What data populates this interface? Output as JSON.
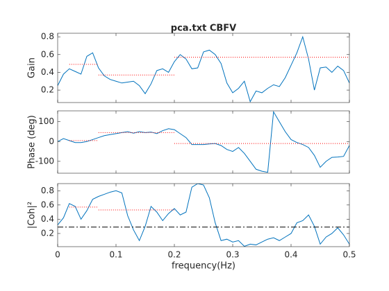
{
  "chart_data": [
    {
      "type": "line",
      "title": "pca.txt CBFV",
      "ylabel": "Gain",
      "color": "#0072bd",
      "x": [
        0,
        0.01,
        0.02,
        0.03,
        0.04,
        0.05,
        0.06,
        0.07,
        0.08,
        0.09,
        0.1,
        0.11,
        0.12,
        0.13,
        0.14,
        0.15,
        0.16,
        0.17,
        0.18,
        0.19,
        0.2,
        0.21,
        0.22,
        0.23,
        0.24,
        0.25,
        0.26,
        0.27,
        0.28,
        0.29,
        0.3,
        0.31,
        0.32,
        0.33,
        0.34,
        0.35,
        0.36,
        0.37,
        0.38,
        0.39,
        0.4,
        0.41,
        0.42,
        0.43,
        0.44,
        0.45,
        0.46,
        0.47,
        0.48,
        0.49,
        0.5
      ],
      "values": [
        0.25,
        0.38,
        0.44,
        0.41,
        0.38,
        0.58,
        0.62,
        0.45,
        0.36,
        0.32,
        0.3,
        0.28,
        0.29,
        0.3,
        0.25,
        0.16,
        0.27,
        0.42,
        0.44,
        0.4,
        0.52,
        0.6,
        0.55,
        0.44,
        0.45,
        0.63,
        0.65,
        0.6,
        0.5,
        0.28,
        0.17,
        0.22,
        0.3,
        0.07,
        0.19,
        0.17,
        0.22,
        0.26,
        0.24,
        0.34,
        0.48,
        0.62,
        0.8,
        0.55,
        0.2,
        0.45,
        0.46,
        0.4,
        0.47,
        0.42,
        0.28
      ],
      "segments": [
        {
          "x0": 0.02,
          "x1": 0.07,
          "value": 0.49
        },
        {
          "x0": 0.07,
          "x1": 0.2,
          "value": 0.37
        },
        {
          "x0": 0.2,
          "x1": 0.5,
          "value": 0.57
        }
      ],
      "segment_color": "#ff0000",
      "xlim": [
        0,
        0.5
      ],
      "xticks": [
        0,
        0.1,
        0.2,
        0.3,
        0.4,
        0.5
      ],
      "ylim": [
        0.06,
        0.84
      ],
      "yticks": [
        0.2,
        0.4,
        0.6,
        0.8
      ]
    },
    {
      "type": "line",
      "ylabel": "Phase (deg)",
      "color": "#0072bd",
      "x": [
        0,
        0.01,
        0.02,
        0.03,
        0.04,
        0.05,
        0.06,
        0.07,
        0.08,
        0.09,
        0.1,
        0.11,
        0.12,
        0.13,
        0.14,
        0.15,
        0.16,
        0.17,
        0.18,
        0.19,
        0.2,
        0.21,
        0.22,
        0.23,
        0.24,
        0.25,
        0.26,
        0.27,
        0.28,
        0.29,
        0.3,
        0.31,
        0.32,
        0.33,
        0.34,
        0.35,
        0.36,
        0.37,
        0.38,
        0.39,
        0.4,
        0.41,
        0.42,
        0.43,
        0.44,
        0.45,
        0.46,
        0.47,
        0.48,
        0.49,
        0.5
      ],
      "values": [
        0,
        15,
        5,
        -5,
        -5,
        0,
        10,
        20,
        30,
        35,
        40,
        45,
        50,
        42,
        50,
        45,
        48,
        40,
        55,
        65,
        60,
        40,
        20,
        -15,
        -15,
        -15,
        -12,
        -10,
        -20,
        -40,
        -50,
        -30,
        -60,
        -100,
        -140,
        -150,
        -155,
        150,
        100,
        50,
        10,
        -5,
        -15,
        -30,
        -70,
        -130,
        -100,
        -80,
        -78,
        -75,
        -20
      ],
      "segments": [
        {
          "x0": 0.02,
          "x1": 0.07,
          "value": 5
        },
        {
          "x0": 0.07,
          "x1": 0.2,
          "value": 45
        },
        {
          "x0": 0.2,
          "x1": 0.5,
          "value": -10
        }
      ],
      "segment_color": "#ff0000",
      "xlim": [
        0,
        0.5
      ],
      "xticks": [
        0,
        0.1,
        0.2,
        0.3,
        0.4,
        0.5
      ],
      "ylim": [
        -160,
        155
      ],
      "yticks": [
        -100,
        0,
        100
      ]
    },
    {
      "type": "line",
      "ylabel": "|Coh|²",
      "xlabel": "frequency(Hz)",
      "color": "#0072bd",
      "x": [
        0,
        0.01,
        0.02,
        0.03,
        0.04,
        0.05,
        0.06,
        0.07,
        0.08,
        0.09,
        0.1,
        0.11,
        0.12,
        0.13,
        0.14,
        0.15,
        0.16,
        0.17,
        0.18,
        0.19,
        0.2,
        0.21,
        0.22,
        0.23,
        0.24,
        0.25,
        0.26,
        0.27,
        0.28,
        0.29,
        0.3,
        0.31,
        0.32,
        0.33,
        0.34,
        0.35,
        0.36,
        0.37,
        0.38,
        0.39,
        0.4,
        0.41,
        0.42,
        0.43,
        0.44,
        0.45,
        0.46,
        0.47,
        0.48,
        0.49,
        0.5
      ],
      "values": [
        0.32,
        0.42,
        0.62,
        0.58,
        0.4,
        0.52,
        0.68,
        0.72,
        0.75,
        0.78,
        0.8,
        0.77,
        0.45,
        0.25,
        0.1,
        0.3,
        0.58,
        0.5,
        0.38,
        0.48,
        0.55,
        0.46,
        0.5,
        0.85,
        0.9,
        0.88,
        0.7,
        0.35,
        0.1,
        0.12,
        0.08,
        0.1,
        0.02,
        0.05,
        0.04,
        0.08,
        0.12,
        0.14,
        0.1,
        0.15,
        0.2,
        0.35,
        0.38,
        0.46,
        0.3,
        0.05,
        0.15,
        0.2,
        0.28,
        0.18,
        0.05
      ],
      "segments": [
        {
          "x0": 0.02,
          "x1": 0.07,
          "value": 0.57
        },
        {
          "x0": 0.07,
          "x1": 0.2,
          "value": 0.53
        }
      ],
      "segment_color": "#ff0000",
      "threshold": 0.29,
      "threshold_color": "#000000",
      "xlim": [
        0,
        0.5
      ],
      "xticks": [
        0,
        0.1,
        0.2,
        0.3,
        0.4,
        0.5
      ],
      "ylim": [
        0.015,
        0.9
      ],
      "yticks": [
        0.2,
        0.4,
        0.6,
        0.8
      ]
    }
  ]
}
